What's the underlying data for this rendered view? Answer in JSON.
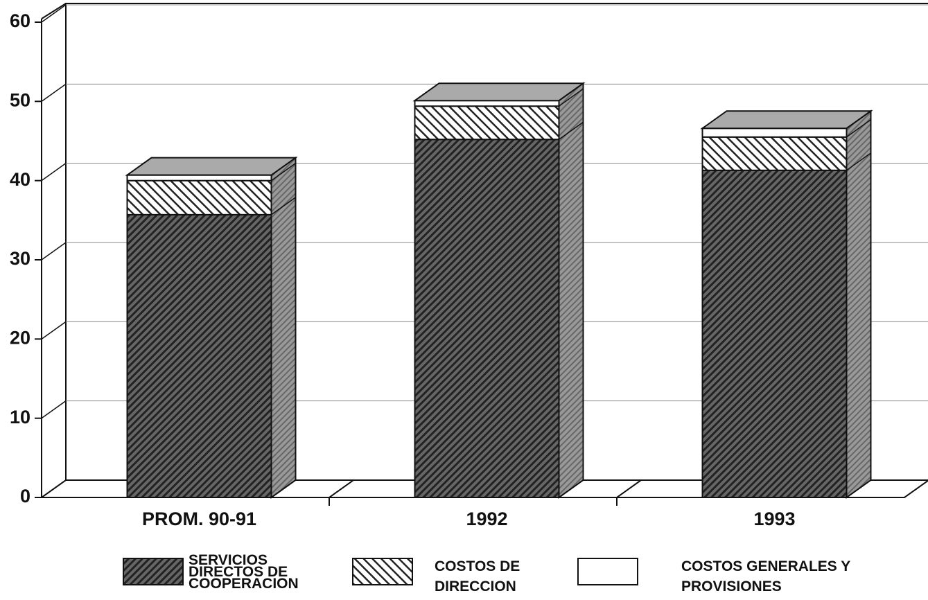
{
  "chart_data": {
    "type": "bar3d_stacked",
    "categories": [
      "PROM. 90-91",
      "1992",
      "1993"
    ],
    "series": [
      {
        "name": "SERVICIOS DIRECTOS DE COOPERACION",
        "color": "#555555",
        "values": [
          35.7,
          45.2,
          41.3
        ]
      },
      {
        "name": "COSTOS DE DIRECCION",
        "color": "#ffffff",
        "values": [
          4.3,
          4.2,
          4.2
        ]
      },
      {
        "name": "COSTOS GENERALES Y PROVISIONES",
        "color": "#ffffff",
        "values": [
          0.7,
          0.7,
          1.1
        ]
      }
    ],
    "ylim": [
      0,
      60
    ],
    "yticks": [
      0,
      10,
      20,
      30,
      40,
      50,
      60
    ],
    "grid": true
  }
}
